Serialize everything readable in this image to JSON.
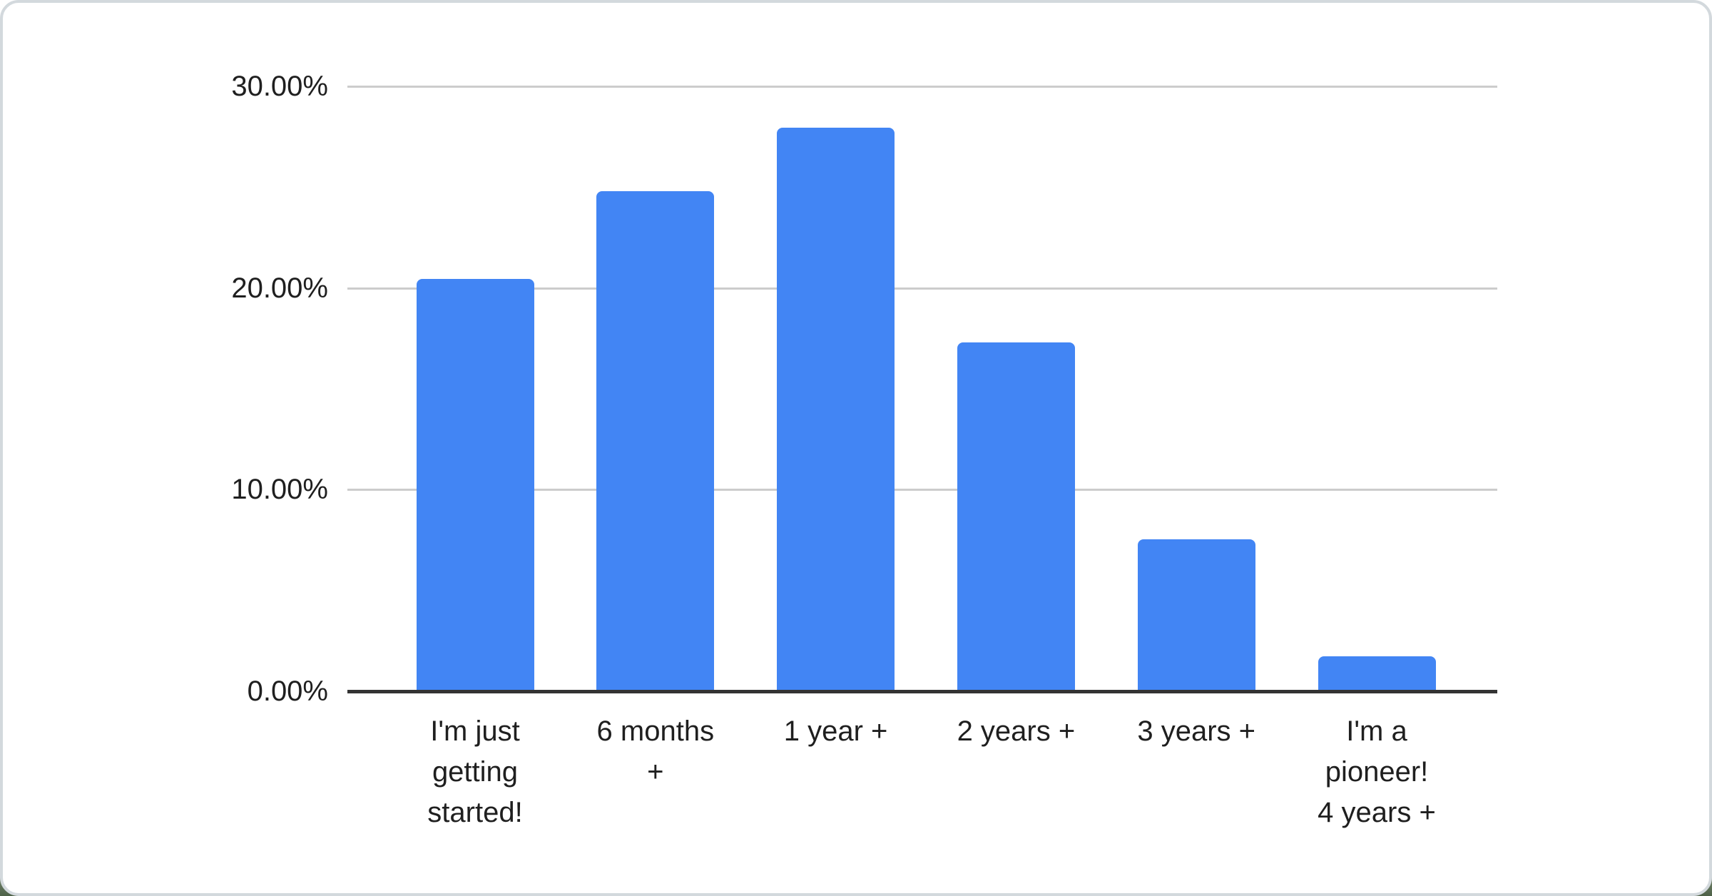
{
  "page": {
    "card_background": "#ffffff",
    "card_border_color": "#d3d9dd",
    "outer_background_bottom": "#4d6147"
  },
  "chart_data": {
    "type": "bar",
    "title": "",
    "xlabel": "",
    "ylabel": "",
    "categories": [
      "I'm just\ngetting\nstarted!",
      "6 months\n+",
      "1 year +",
      "2 years +",
      "3 years +",
      "I'm a\npioneer!\n4 years +"
    ],
    "values": [
      20.45,
      24.8,
      27.95,
      17.3,
      7.55,
      1.75
    ],
    "value_unit": "%",
    "y_tick_labels": [
      "30.00%",
      "20.00%",
      "10.00%",
      "0.00%"
    ],
    "y_tick_values": [
      30,
      20,
      10,
      0
    ],
    "ylim": [
      0,
      30
    ],
    "grid": true,
    "legend": "none",
    "bar_color": "#4285f4",
    "gridline_color": "#cccccc",
    "axis_line_color": "#333333",
    "label_color": "#1f1f1f"
  }
}
